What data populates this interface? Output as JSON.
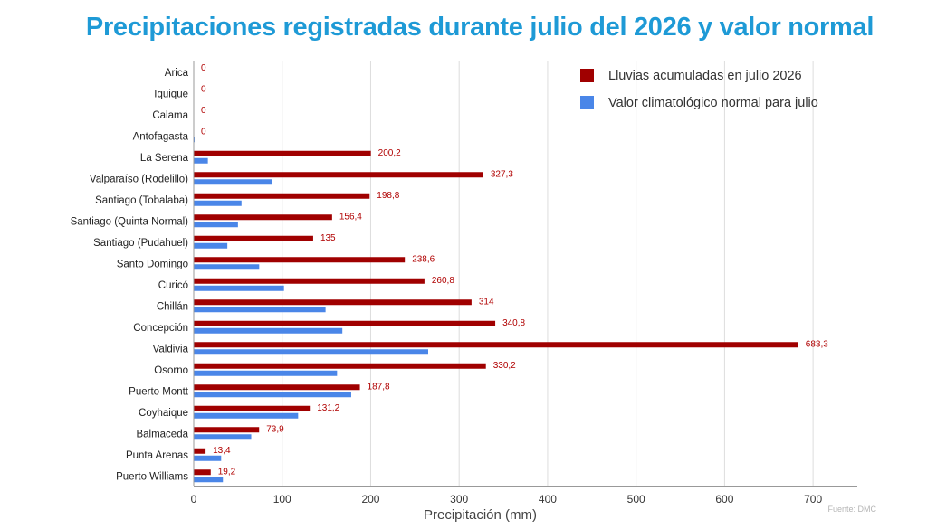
{
  "title": "Precipitaciones registradas durante julio del 2026 y valor normal",
  "source": "Fuente: DMC",
  "colors": {
    "title": "#1e9ad6",
    "accumulated": "#a00000",
    "normal": "#4a86e8",
    "grid": "#dddddd"
  },
  "chart_data": {
    "type": "bar",
    "orientation": "horizontal",
    "title": "Precipitaciones registradas durante julio del 2026 y valor normal",
    "xlabel": "Precipitación (mm)",
    "ylabel": "",
    "xlim": [
      0,
      750
    ],
    "xticks": [
      0,
      100,
      200,
      300,
      400,
      500,
      600,
      700
    ],
    "grid": true,
    "legend_position": "top-right",
    "categories": [
      "Arica",
      "Iquique",
      "Calama",
      "Antofagasta",
      "La Serena",
      "Valparaíso (Rodelillo)",
      "Santiago (Tobalaba)",
      "Santiago (Quinta Normal)",
      "Santiago (Pudahuel)",
      "Santo Domingo",
      "Curicó",
      "Chillán",
      "Concepción",
      "Valdivia",
      "Osorno",
      "Puerto Montt",
      "Coyhaique",
      "Balmaceda",
      "Punta Arenas",
      "Puerto Williams"
    ],
    "series": [
      {
        "name": "Lluvias acumuladas en julio 2026",
        "color": "#a00000",
        "values": [
          0,
          0,
          0,
          0,
          200.2,
          327.3,
          198.8,
          156.4,
          135,
          238.6,
          260.8,
          314,
          340.8,
          683.3,
          330.2,
          187.8,
          131.2,
          73.9,
          13.4,
          19.2
        ],
        "labels": [
          "0",
          "0",
          "0",
          "0",
          "200,2",
          "327,3",
          "198,8",
          "156,4",
          "135",
          "238,6",
          "260,8",
          "314",
          "340,8",
          "683,3",
          "330,2",
          "187,8",
          "131,2",
          "73,9",
          "13,4",
          "19,2"
        ]
      },
      {
        "name": "Valor climatológico normal para julio",
        "color": "#4a86e8",
        "values": [
          0.1,
          0.3,
          0.5,
          1,
          16,
          88,
          54,
          50,
          38,
          74,
          102,
          149,
          168,
          265,
          162,
          178,
          118,
          65,
          31,
          33
        ]
      }
    ]
  }
}
